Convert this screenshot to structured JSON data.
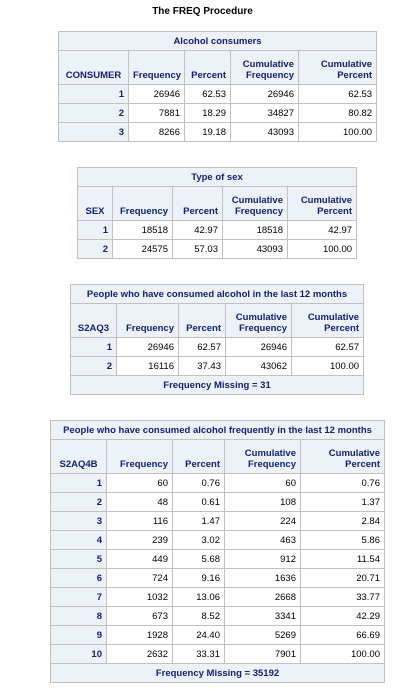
{
  "procedure_title": "The FREQ Procedure",
  "tables": [
    {
      "caption": "Alcohol consumers",
      "headers": [
        "CONSUMER",
        "Frequency",
        "Percent",
        "Cumulative Frequency",
        "Cumulative Percent"
      ],
      "rows": [
        [
          "1",
          "26946",
          "62.53",
          "26946",
          "62.53"
        ],
        [
          "2",
          "7881",
          "18.29",
          "34827",
          "80.82"
        ],
        [
          "3",
          "8266",
          "19.18",
          "43093",
          "100.00"
        ]
      ],
      "footer": ""
    },
    {
      "caption": "Type of sex",
      "headers": [
        "SEX",
        "Frequency",
        "Percent",
        "Cumulative Frequency",
        "Cumulative Percent"
      ],
      "rows": [
        [
          "1",
          "18518",
          "42.97",
          "18518",
          "42.97"
        ],
        [
          "2",
          "24575",
          "57.03",
          "43093",
          "100.00"
        ]
      ],
      "footer": ""
    },
    {
      "caption": "People who have consumed alcohol in the last 12 months",
      "headers": [
        "S2AQ3",
        "Frequency",
        "Percent",
        "Cumulative Frequency",
        "Cumulative Percent"
      ],
      "rows": [
        [
          "1",
          "26946",
          "62.57",
          "26946",
          "62.57"
        ],
        [
          "2",
          "16116",
          "37.43",
          "43062",
          "100.00"
        ]
      ],
      "footer": "Frequency Missing = 31"
    },
    {
      "caption": "People who have consumed alcohol frequently in the last 12 months",
      "headers": [
        "S2AQ4B",
        "Frequency",
        "Percent",
        "Cumulative Frequency",
        "Cumulative Percent"
      ],
      "rows": [
        [
          "1",
          "60",
          "0.76",
          "60",
          "0.76"
        ],
        [
          "2",
          "48",
          "0.61",
          "108",
          "1.37"
        ],
        [
          "3",
          "116",
          "1.47",
          "224",
          "2.84"
        ],
        [
          "4",
          "239",
          "3.02",
          "463",
          "5.86"
        ],
        [
          "5",
          "449",
          "5.68",
          "912",
          "11.54"
        ],
        [
          "6",
          "724",
          "9.16",
          "1636",
          "20.71"
        ],
        [
          "7",
          "1032",
          "13.06",
          "2668",
          "33.77"
        ],
        [
          "8",
          "673",
          "8.52",
          "3341",
          "42.29"
        ],
        [
          "9",
          "1928",
          "24.40",
          "5269",
          "66.69"
        ],
        [
          "10",
          "2632",
          "33.31",
          "7901",
          "100.00"
        ]
      ],
      "footer": "Frequency Missing = 35192"
    }
  ]
}
